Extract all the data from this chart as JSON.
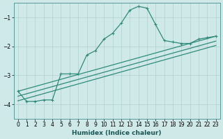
{
  "xlabel": "Humidex (Indice chaleur)",
  "ylabel": "",
  "bg_color": "#cfe8e8",
  "grid_color": "#b0d0d0",
  "line_color": "#2e8b7a",
  "xlim": [
    -0.5,
    23.5
  ],
  "ylim": [
    -4.5,
    -0.5
  ],
  "yticks": [
    -4,
    -3,
    -2,
    -1
  ],
  "xticks": [
    0,
    1,
    2,
    3,
    4,
    5,
    6,
    7,
    8,
    9,
    10,
    11,
    12,
    13,
    14,
    15,
    16,
    17,
    18,
    19,
    20,
    21,
    22,
    23
  ],
  "curve1_x": [
    0,
    1,
    2,
    3,
    4,
    5,
    6,
    7,
    8,
    9,
    10,
    11,
    12,
    13,
    14,
    15,
    16,
    17,
    18,
    19,
    20,
    21,
    22,
    23
  ],
  "curve1_y": [
    -3.55,
    -3.9,
    -3.9,
    -3.85,
    -3.85,
    -2.95,
    -2.95,
    -2.95,
    -2.3,
    -2.15,
    -1.75,
    -1.55,
    -1.2,
    -0.75,
    -0.62,
    -0.68,
    -1.25,
    -1.8,
    -1.85,
    -1.9,
    -1.9,
    -1.75,
    -1.7,
    -1.65
  ],
  "line1_x": [
    0,
    23
  ],
  "line1_y": [
    -3.55,
    -1.65
  ],
  "line2_x": [
    0,
    23
  ],
  "line2_y": [
    -3.72,
    -1.82
  ],
  "line3_x": [
    0,
    23
  ],
  "line3_y": [
    -3.88,
    -1.97
  ]
}
